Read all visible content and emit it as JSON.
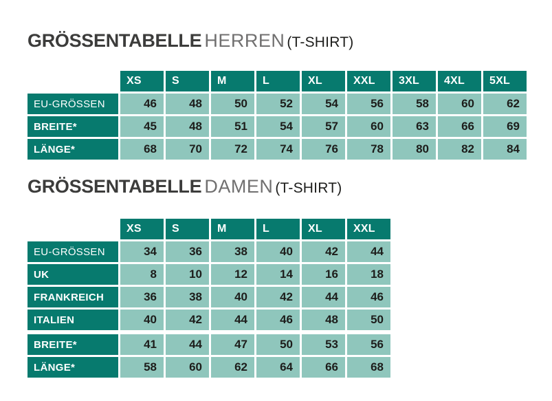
{
  "colors": {
    "header_bg": "#077a6e",
    "cell_bg": "#8fc6bc",
    "cell_text": "#1d1d1b",
    "label_text": "#ffffff",
    "title_bold": "#3c3c3b",
    "title_light": "#706f6f",
    "title_suffix": "#1d1d1b"
  },
  "tables": [
    {
      "title_bold": "GRÖSSENTABELLE",
      "title_light": "HERREN",
      "title_suffix": "(T-SHIRT)",
      "columns": [
        "XS",
        "S",
        "M",
        "L",
        "XL",
        "XXL",
        "3XL",
        "4XL",
        "5XL"
      ],
      "rows": [
        {
          "label": "EU-GRÖSSEN",
          "bold": false,
          "section_gap": false,
          "values": [
            "46",
            "48",
            "50",
            "52",
            "54",
            "56",
            "58",
            "60",
            "62"
          ]
        },
        {
          "label": "BREITE*",
          "bold": true,
          "section_gap": false,
          "values": [
            "45",
            "48",
            "51",
            "54",
            "57",
            "60",
            "63",
            "66",
            "69"
          ]
        },
        {
          "label": "LÄNGE*",
          "bold": true,
          "section_gap": false,
          "values": [
            "68",
            "70",
            "72",
            "74",
            "76",
            "78",
            "80",
            "82",
            "84"
          ]
        }
      ]
    },
    {
      "title_bold": "GRÖSSENTABELLE",
      "title_light": "DAMEN",
      "title_suffix": "(T-SHIRT)",
      "columns": [
        "XS",
        "S",
        "M",
        "L",
        "XL",
        "XXL"
      ],
      "rows": [
        {
          "label": "EU-GRÖSSEN",
          "bold": false,
          "section_gap": false,
          "values": [
            "34",
            "36",
            "38",
            "40",
            "42",
            "44"
          ]
        },
        {
          "label": "UK",
          "bold": true,
          "section_gap": false,
          "values": [
            "8",
            "10",
            "12",
            "14",
            "16",
            "18"
          ]
        },
        {
          "label": "FRANKREICH",
          "bold": true,
          "section_gap": false,
          "values": [
            "36",
            "38",
            "40",
            "42",
            "44",
            "46"
          ]
        },
        {
          "label": "ITALIEN",
          "bold": true,
          "section_gap": false,
          "values": [
            "40",
            "42",
            "44",
            "46",
            "48",
            "50"
          ]
        },
        {
          "label": "BREITE*",
          "bold": true,
          "section_gap": true,
          "values": [
            "41",
            "44",
            "47",
            "50",
            "53",
            "56"
          ]
        },
        {
          "label": "LÄNGE*",
          "bold": true,
          "section_gap": false,
          "values": [
            "58",
            "60",
            "62",
            "64",
            "66",
            "68"
          ]
        }
      ]
    }
  ]
}
